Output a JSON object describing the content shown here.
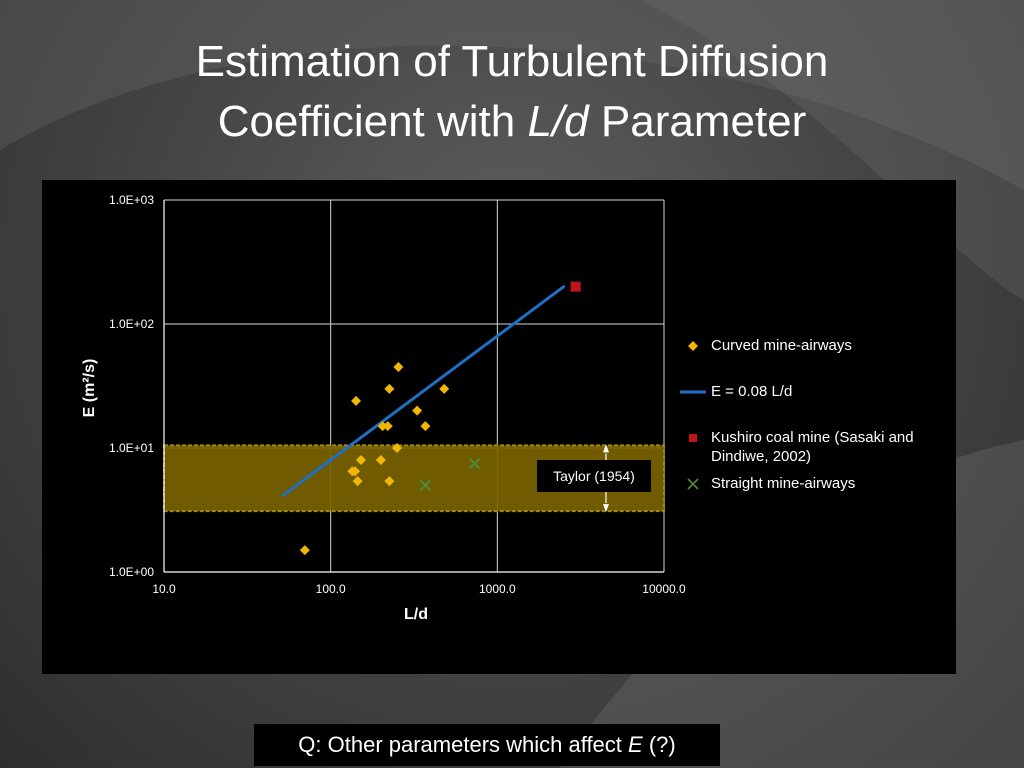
{
  "slide": {
    "title_line1": "Estimation of Turbulent Diffusion",
    "title_line2_prefix": "Coefficient with ",
    "title_line2_italic": "L/d",
    "title_line2_suffix": " Parameter",
    "question_prefix": "Q: Other parameters which affect ",
    "question_italic": "E",
    "question_suffix": " (?)",
    "taylor_label": "Taylor (1954)"
  },
  "colors": {
    "curved": "#f2b705",
    "fit_line": "#1f6fc4",
    "kushiro": "#c0141c",
    "straight": "#4e8a3a",
    "taylor_band": "#7a6300",
    "taylor_border": "#a08a10"
  },
  "chart_data": {
    "type": "scatter",
    "xlabel": "L/d",
    "ylabel": "E (m²/s)",
    "xscale": "log",
    "yscale": "log",
    "xlim": [
      10,
      10000
    ],
    "ylim": [
      1,
      1000
    ],
    "x_ticks": [
      "10.0",
      "100.0",
      "1000.0",
      "10000.0"
    ],
    "y_ticks": [
      "1.0E+00",
      "1.0E+01",
      "1.0E+02",
      "1.0E+03"
    ],
    "grid": true,
    "legend_position": "right",
    "taylor_band": {
      "ymin": 3.1,
      "ymax": 10.5,
      "label": "Taylor (1954)"
    },
    "series": [
      {
        "name": "Curved mine-airways",
        "marker": "diamond",
        "points": [
          [
            70,
            1.5
          ],
          [
            135,
            6.5
          ],
          [
            140,
            6.5
          ],
          [
            142,
            24
          ],
          [
            145,
            5.4
          ],
          [
            152,
            8
          ],
          [
            200,
            8
          ],
          [
            205,
            15
          ],
          [
            220,
            15
          ],
          [
            225,
            30
          ],
          [
            225,
            5.4
          ],
          [
            250,
            10
          ],
          [
            255,
            45
          ],
          [
            330,
            20
          ],
          [
            370,
            15
          ],
          [
            480,
            30
          ]
        ]
      },
      {
        "name": "E = 0.08 L/d",
        "marker": "line",
        "points": [
          [
            52,
            4.16
          ],
          [
            2500,
            200
          ]
        ]
      },
      {
        "name": "Kushiro coal mine (Sasaki and Dindiwe, 2002)",
        "marker": "square",
        "points": [
          [
            2950,
            200
          ]
        ]
      },
      {
        "name": "Straight mine-airways",
        "marker": "x",
        "points": [
          [
            370,
            5
          ],
          [
            730,
            7.5
          ]
        ]
      }
    ]
  }
}
